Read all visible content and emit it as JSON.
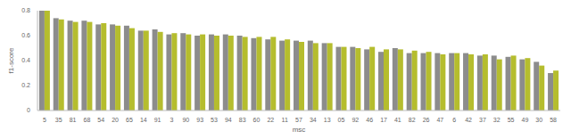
{
  "chart_data": {
    "type": "bar",
    "x_label": "msc",
    "y_label": "f1-score",
    "categories": [
      "5",
      "35",
      "81",
      "68",
      "54",
      "20",
      "65",
      "14",
      "91",
      "3",
      "90",
      "93",
      "53",
      "94",
      "83",
      "60",
      "22",
      "11",
      "57",
      "34",
      "13",
      "05",
      "92",
      "46",
      "17",
      "41",
      "82",
      "26",
      "47",
      "6",
      "42",
      "37",
      "32",
      "55",
      "49",
      "30",
      "58"
    ],
    "series": [
      {
        "color": "#8c8c8c",
        "values": [
          0.8,
          0.74,
          0.72,
          0.72,
          0.69,
          0.69,
          0.68,
          0.64,
          0.65,
          0.61,
          0.62,
          0.6,
          0.61,
          0.61,
          0.6,
          0.58,
          0.57,
          0.56,
          0.56,
          0.56,
          0.54,
          0.51,
          0.51,
          0.49,
          0.47,
          0.5,
          0.46,
          0.46,
          0.46,
          0.46,
          0.46,
          0.44,
          0.44,
          0.43,
          0.41,
          0.39,
          0.3
        ]
      },
      {
        "color": "#b5bd2e",
        "values": [
          0.8,
          0.73,
          0.71,
          0.71,
          0.7,
          0.68,
          0.66,
          0.64,
          0.63,
          0.62,
          0.61,
          0.61,
          0.6,
          0.6,
          0.59,
          0.59,
          0.59,
          0.57,
          0.55,
          0.54,
          0.54,
          0.51,
          0.5,
          0.51,
          0.49,
          0.49,
          0.48,
          0.47,
          0.45,
          0.46,
          0.45,
          0.45,
          0.41,
          0.44,
          0.42,
          0.36,
          0.32
        ]
      }
    ],
    "ylim": [
      0,
      0.8
    ],
    "yticks": [
      0,
      0.2,
      0.4,
      0.6,
      0.8
    ],
    "grid": false
  }
}
